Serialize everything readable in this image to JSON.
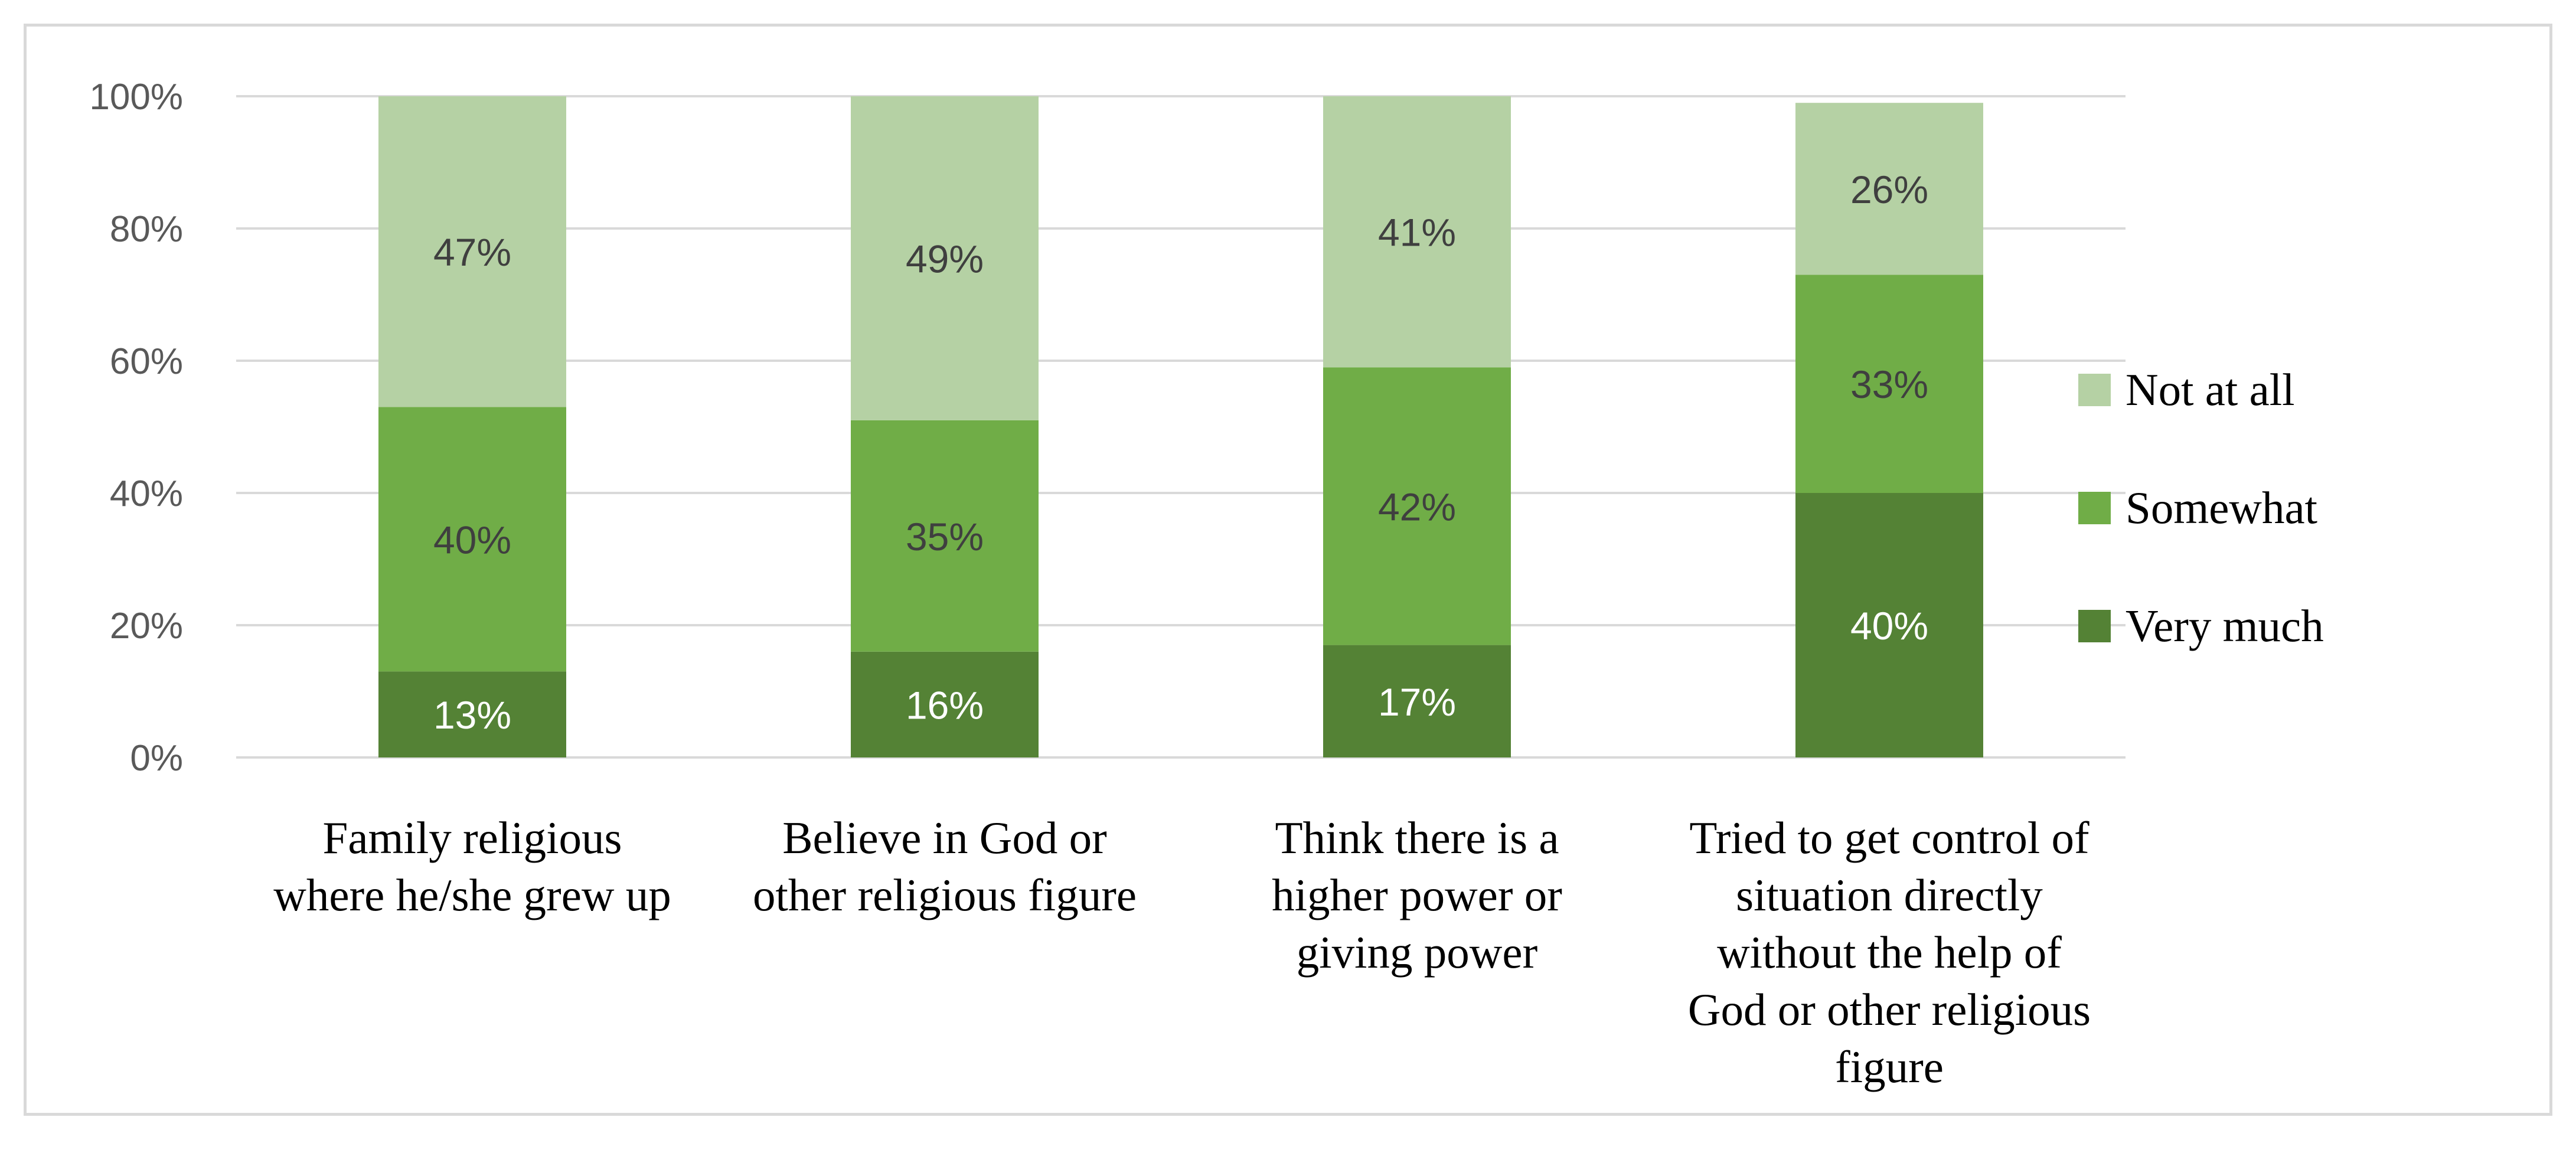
{
  "chart_data": {
    "type": "bar",
    "stacked": true,
    "categories": [
      [
        "Family religious",
        "where he/she grew up"
      ],
      [
        "Believe in God or",
        "other religious figure"
      ],
      [
        "Think there is a",
        "higher power or",
        "giving power"
      ],
      [
        "Tried to get control of",
        "situation directly",
        "without the help of",
        "God or other religious",
        "figure"
      ]
    ],
    "series": [
      {
        "name": "Very much",
        "color": "#548235",
        "label_color": "#ffffff",
        "values": [
          13,
          16,
          17,
          40
        ]
      },
      {
        "name": "Somewhat",
        "color": "#70ad47",
        "label_color": "#3f3f3f",
        "values": [
          40,
          35,
          42,
          33
        ]
      },
      {
        "name": "Not at all",
        "color": "#b5d1a4",
        "label_color": "#3f3f3f",
        "values": [
          47,
          49,
          41,
          26
        ]
      }
    ],
    "value_suffix": "%",
    "yticks": [
      "0%",
      "20%",
      "40%",
      "60%",
      "80%",
      "100%"
    ],
    "ylim": [
      0,
      100
    ],
    "legend_position": "right",
    "legend_order": [
      "Not at all",
      "Somewhat",
      "Very much"
    ],
    "gridlines": true,
    "title": "",
    "xlabel": "",
    "ylabel": ""
  }
}
